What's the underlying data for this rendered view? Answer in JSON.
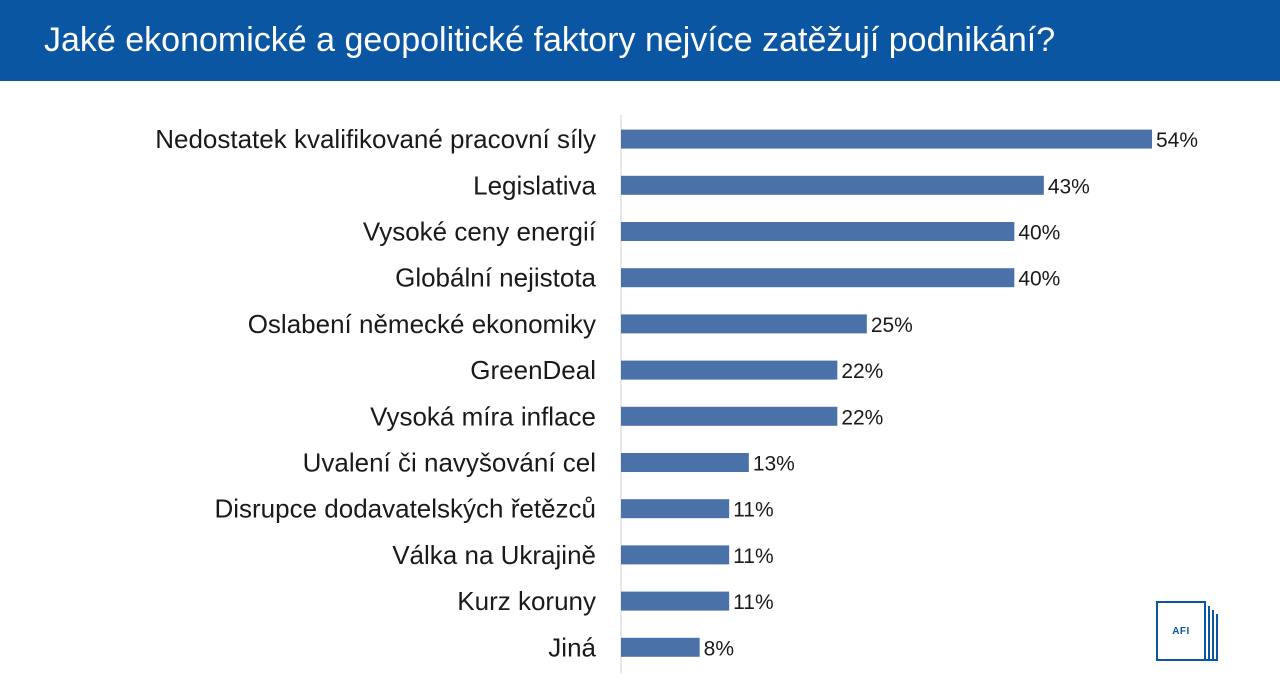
{
  "header": {
    "title": "Jaké ekonomické a geopolitické faktory nejvíce zatěžují podnikání?"
  },
  "colors": {
    "header_bg": "#0b56a3",
    "bar": "#4a72a8",
    "axis": "#d0d0d0"
  },
  "logo": {
    "text": "AFI",
    "icon": "afi-logo"
  },
  "chart_data": {
    "type": "bar",
    "orientation": "horizontal",
    "title": "",
    "xlabel": "",
    "ylabel": "",
    "xlim": [
      0,
      60
    ],
    "grid": false,
    "legend": "none",
    "value_suffix": "%",
    "categories": [
      "Nedostatek kvalifikované pracovní síly",
      "Legislativa",
      "Vysoké ceny energií",
      "Globální nejistota",
      "Oslabení německé ekonomiky",
      "GreenDeal",
      "Vysoká míra inflace",
      "Uvalení či navyšování cel",
      "Disrupce dodavatelských řetězců",
      "Válka na Ukrajině",
      "Kurz koruny",
      "Jiná"
    ],
    "values": [
      54,
      43,
      40,
      40,
      25,
      22,
      22,
      13,
      11,
      11,
      11,
      8
    ],
    "labels": [
      "54%",
      "43%",
      "40%",
      "40%",
      "25%",
      "22%",
      "22%",
      "13%",
      "11%",
      "11%",
      "11%",
      "8%"
    ]
  }
}
